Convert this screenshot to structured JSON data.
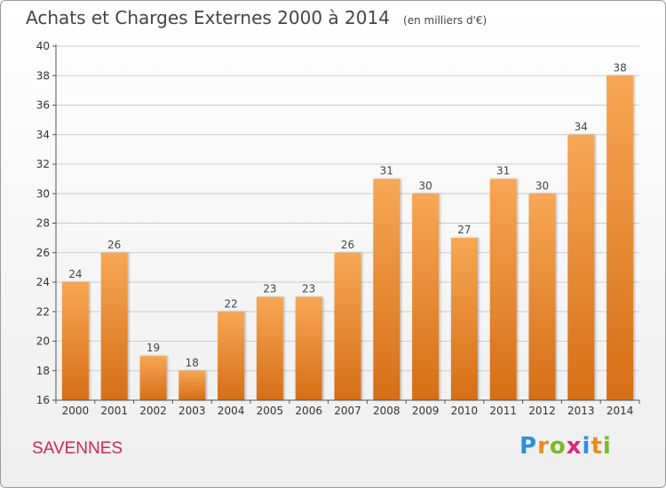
{
  "header": {
    "title": "Achats et Charges Externes 2000 à 2014",
    "unit": "(en milliers d'€)"
  },
  "footer": {
    "town": "SAVENNES"
  },
  "logo": {
    "text": "Proxiti",
    "letters": [
      "P",
      "r",
      "o",
      "x",
      "i",
      "t",
      "i"
    ],
    "colors": [
      "#2f8fd8",
      "#f08a1c",
      "#78b928",
      "#e4257a",
      "#2f8fd8",
      "#f08a1c",
      "#78b928"
    ]
  },
  "colors": {
    "bar_light": "#f7a755",
    "bar_dark": "#d66e16",
    "grid": "#cccccc",
    "axis": "#555555"
  },
  "chart_data": {
    "type": "bar",
    "title": "Achats et Charges Externes 2000 à 2014",
    "categories": [
      "2000",
      "2001",
      "2002",
      "2003",
      "2004",
      "2005",
      "2006",
      "2007",
      "2008",
      "2009",
      "2010",
      "2011",
      "2012",
      "2013",
      "2014"
    ],
    "values": [
      24,
      26,
      19,
      18,
      22,
      23,
      23,
      26,
      31,
      30,
      27,
      31,
      30,
      34,
      38
    ],
    "ylim": [
      16,
      40
    ],
    "yticks": [
      16,
      18,
      20,
      22,
      24,
      26,
      28,
      30,
      32,
      34,
      36,
      38,
      40
    ],
    "grid": true
  }
}
